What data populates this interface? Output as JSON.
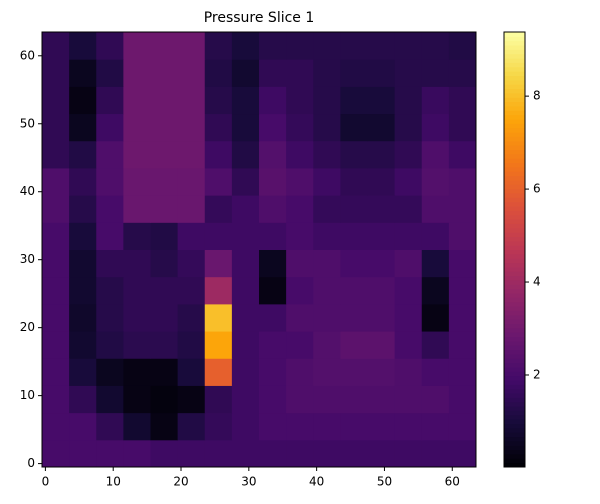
{
  "chart_data": {
    "type": "heatmap",
    "title": "Pressure Slice 1",
    "colormap": "inferno",
    "xlim": [
      -0.5,
      63.5
    ],
    "ylim": [
      -0.5,
      63.5
    ],
    "xticks": [
      0,
      10,
      20,
      30,
      40,
      50,
      60
    ],
    "yticks": [
      0,
      10,
      20,
      30,
      40,
      50,
      60
    ],
    "clim": [
      0.02,
      9.38
    ],
    "cticks": [
      2,
      4,
      6,
      8
    ],
    "z": [
      [
        2,
        2,
        2,
        2,
        1.8,
        1.8,
        1.8,
        1.8,
        1.8,
        1.8,
        1.8,
        1.8,
        1.8,
        1.8,
        1.8,
        1.8
      ],
      [
        2,
        2,
        1.5,
        0.8,
        0.3,
        1.2,
        1.6,
        1.8,
        2,
        2,
        2,
        2,
        2,
        2,
        2,
        2
      ],
      [
        2,
        1.5,
        0.8,
        0.3,
        0.2,
        0.3,
        1.5,
        1.8,
        2,
        2.2,
        2.2,
        2.2,
        2.2,
        2.2,
        2.2,
        2
      ],
      [
        2,
        1,
        0.5,
        0.3,
        0.3,
        1.0,
        6,
        1.8,
        2,
        2.2,
        2.3,
        2.3,
        2.3,
        2.2,
        2,
        2
      ],
      [
        2,
        0.8,
        1.2,
        1.4,
        1.4,
        1.2,
        7.5,
        1.8,
        2,
        2,
        2.3,
        2.5,
        2.5,
        2,
        1.5,
        2
      ],
      [
        2,
        0.7,
        1.3,
        1.5,
        1.5,
        1.3,
        8,
        1.8,
        1.8,
        2.2,
        2.2,
        2.2,
        2.2,
        2,
        0.3,
        2
      ],
      [
        2,
        0.8,
        1.3,
        1.5,
        1.5,
        1.5,
        4,
        1.8,
        0.3,
        2,
        2.2,
        2.2,
        2.2,
        2,
        0.5,
        2
      ],
      [
        2,
        0.8,
        1.5,
        1.5,
        1.3,
        1.6,
        2.8,
        1.8,
        0.5,
        2.2,
        2.2,
        2,
        2,
        2.2,
        1,
        2
      ],
      [
        2,
        1,
        2,
        1.3,
        1.2,
        1.8,
        1.8,
        1.8,
        1.8,
        2,
        1.8,
        1.8,
        1.8,
        1.8,
        1.8,
        2.2
      ],
      [
        2.2,
        1.3,
        2,
        2.8,
        2.8,
        2.8,
        1.6,
        1.8,
        2.2,
        2,
        1.6,
        1.6,
        1.6,
        1.6,
        2.2,
        2.2
      ],
      [
        2.2,
        1.5,
        2.2,
        2.8,
        2.8,
        2.8,
        2.2,
        1.5,
        2.4,
        2.2,
        1.8,
        1.5,
        1.5,
        1.8,
        2.3,
        2.2
      ],
      [
        1.5,
        1.2,
        2.2,
        2.9,
        2.9,
        2.9,
        1.8,
        1.2,
        2.3,
        1.8,
        1.5,
        1.3,
        1.3,
        1.5,
        2.2,
        1.8
      ],
      [
        1.5,
        0.5,
        1.8,
        2.9,
        2.9,
        2.9,
        1.5,
        1,
        2,
        1.6,
        1.3,
        0.8,
        0.8,
        1.3,
        1.8,
        1.5
      ],
      [
        1.5,
        0.3,
        1.5,
        2.9,
        2.9,
        2.9,
        1.3,
        1,
        1.8,
        1.5,
        1.3,
        1,
        1,
        1.3,
        1.7,
        1.5
      ],
      [
        1.5,
        0.5,
        1.2,
        2.9,
        2.9,
        2.9,
        1.2,
        0.8,
        1.5,
        1.5,
        1.3,
        1.2,
        1.2,
        1.3,
        1.3,
        1.3
      ],
      [
        1.5,
        1,
        1.5,
        2.9,
        2.9,
        2.9,
        1.3,
        1,
        1.3,
        1.3,
        1.3,
        1.3,
        1.3,
        1.3,
        1.3,
        1.2
      ]
    ]
  }
}
